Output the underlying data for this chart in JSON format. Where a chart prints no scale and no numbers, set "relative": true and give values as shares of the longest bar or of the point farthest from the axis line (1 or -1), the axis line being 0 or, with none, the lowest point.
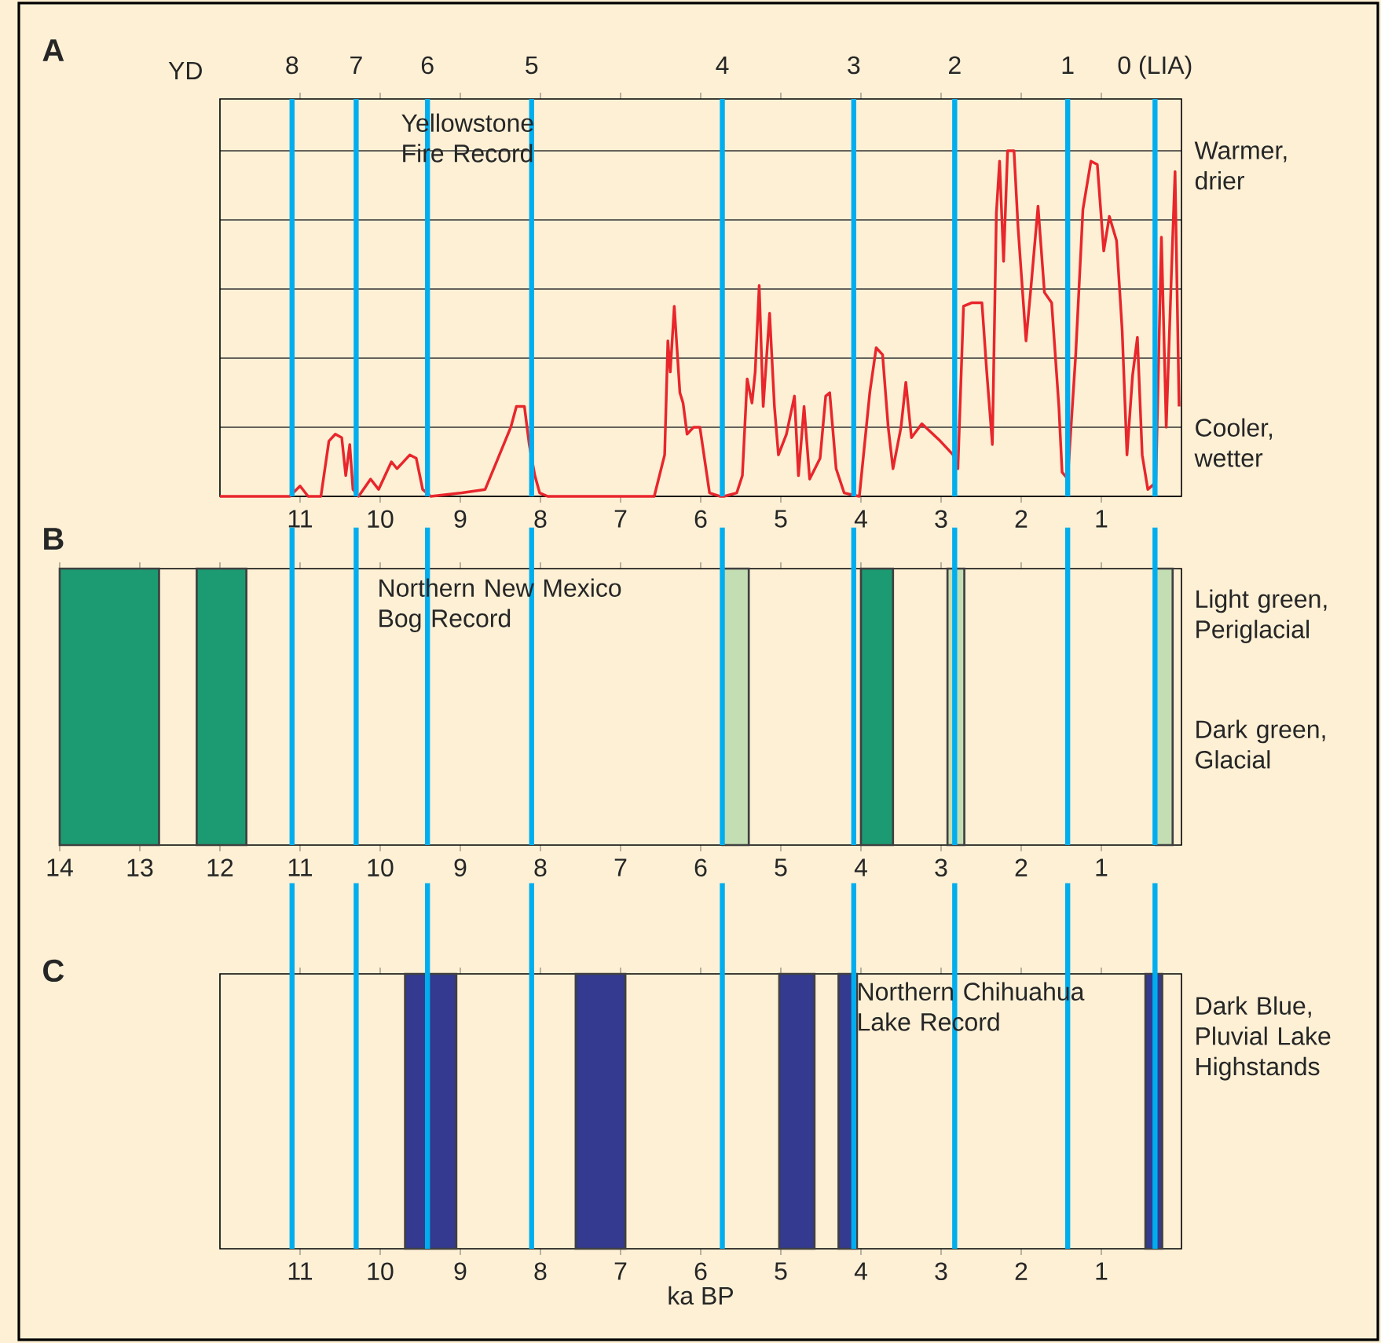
{
  "chart_data": [
    {
      "type": "line",
      "title": "A",
      "relative": true,
      "grid": "y",
      "xlim": [
        12,
        0
      ],
      "xticks": [
        11,
        10,
        9,
        8,
        7,
        6,
        5,
        4,
        3,
        2,
        1
      ],
      "series": [
        {
          "color": "#e8262c",
          "x": [
            12.0,
            11.13,
            11.0,
            10.9,
            10.74,
            10.64,
            10.56,
            10.48,
            10.43,
            10.38,
            10.34,
            10.27,
            10.12,
            10.02,
            9.86,
            9.79,
            9.63,
            9.55,
            9.47,
            9.37,
            8.98,
            8.69,
            8.53,
            8.37,
            8.3,
            8.2,
            8.14,
            8.07,
            8.01,
            7.91,
            6.58,
            6.45,
            6.41,
            6.38,
            6.33,
            6.26,
            6.22,
            6.17,
            6.09,
            6.01,
            5.89,
            5.76,
            5.71,
            5.55,
            5.48,
            5.42,
            5.36,
            5.32,
            5.27,
            5.22,
            5.14,
            5.08,
            5.03,
            4.93,
            4.83,
            4.78,
            4.71,
            4.64,
            4.51,
            4.44,
            4.39,
            4.31,
            4.21,
            4.02,
            3.89,
            3.81,
            3.73,
            3.66,
            3.6,
            3.5,
            3.44,
            3.37,
            3.24,
            3.01,
            2.85,
            2.79,
            2.72,
            2.62,
            2.49,
            2.43,
            2.36,
            2.31,
            2.27,
            2.22,
            2.17,
            2.09,
            2.04,
            1.94,
            1.88,
            1.79,
            1.71,
            1.62,
            1.53,
            1.49,
            1.42,
            1.32,
            1.23,
            1.13,
            1.05,
            0.97,
            0.9,
            0.81,
            0.74,
            0.68,
            0.61,
            0.55,
            0.49,
            0.42,
            0.32,
            0.25,
            0.19,
            0.12,
            0.08,
            0.03
          ],
          "values": [
            0,
            0,
            0.03,
            0,
            0,
            0.16,
            0.18,
            0.17,
            0.06,
            0.15,
            0.02,
            0,
            0.05,
            0.02,
            0.1,
            0.08,
            0.12,
            0.11,
            0.02,
            0,
            0.01,
            0.02,
            0.11,
            0.2,
            0.26,
            0.26,
            0.15,
            0.06,
            0.01,
            0,
            0,
            0.12,
            0.45,
            0.36,
            0.55,
            0.3,
            0.27,
            0.18,
            0.2,
            0.2,
            0.01,
            0,
            0,
            0.01,
            0.06,
            0.34,
            0.27,
            0.36,
            0.61,
            0.26,
            0.53,
            0.26,
            0.12,
            0.18,
            0.29,
            0.06,
            0.26,
            0.05,
            0.11,
            0.29,
            0.3,
            0.08,
            0.01,
            0,
            0.3,
            0.43,
            0.41,
            0.2,
            0.08,
            0.2,
            0.33,
            0.17,
            0.21,
            0.16,
            0.12,
            0.08,
            0.55,
            0.56,
            0.56,
            0.36,
            0.15,
            0.82,
            0.97,
            0.68,
            1.0,
            1.0,
            0.78,
            0.45,
            0.6,
            0.84,
            0.59,
            0.56,
            0.26,
            0.07,
            0.05,
            0.41,
            0.83,
            0.97,
            0.96,
            0.71,
            0.81,
            0.74,
            0.48,
            0.12,
            0.35,
            0.46,
            0.12,
            0.02,
            0.04,
            0.75,
            0.2,
            0.68,
            0.94,
            0.26
          ]
        }
      ],
      "ref_lines": [
        {
          "axis": "x",
          "value": 11.1,
          "color": "#00aeef"
        },
        {
          "axis": "x",
          "value": 10.3,
          "color": "#00aeef"
        },
        {
          "axis": "x",
          "value": 9.41,
          "color": "#00aeef"
        },
        {
          "axis": "x",
          "value": 8.11,
          "color": "#00aeef"
        },
        {
          "axis": "x",
          "value": 5.73,
          "color": "#00aeef"
        },
        {
          "axis": "x",
          "value": 4.09,
          "color": "#00aeef"
        },
        {
          "axis": "x",
          "value": 2.83,
          "color": "#00aeef"
        },
        {
          "axis": "x",
          "value": 1.42,
          "color": "#00aeef"
        },
        {
          "axis": "x",
          "value": 0.33,
          "color": "#00aeef"
        }
      ],
      "annotations": [
        "YD",
        "Yellowstone Fire Record",
        "Warmer, drier",
        "Cooler, wetter",
        "8",
        "7",
        "6",
        "5",
        "4",
        "3",
        "2",
        "1",
        "0 (LIA)"
      ]
    },
    {
      "type": "bar",
      "title": "B",
      "orientation": "horizontal",
      "categories": [
        null
      ],
      "xlim": [
        14,
        0
      ],
      "xticks": [
        14,
        13,
        12,
        11,
        10,
        9,
        8,
        7,
        6,
        5,
        4,
        3,
        2,
        1
      ],
      "series": [
        {
          "color": "#1c9b73",
          "values": [
            1.24
          ],
          "base": [
            12.76
          ]
        },
        {
          "color": "#1c9b73",
          "values": [
            0.62
          ],
          "base": [
            11.67
          ]
        },
        {
          "color": "#c4deb4",
          "values": [
            0.33
          ],
          "base": [
            5.4
          ]
        },
        {
          "color": "#1c9b73",
          "values": [
            0.4
          ],
          "base": [
            3.6
          ]
        },
        {
          "color": "#c4deb4",
          "values": [
            0.21
          ],
          "base": [
            2.71
          ]
        },
        {
          "color": "#c4deb4",
          "values": [
            0.21
          ],
          "base": [
            0.11
          ]
        }
      ],
      "ref_lines": [
        {
          "axis": "x",
          "value": 11.1,
          "color": "#00aeef"
        },
        {
          "axis": "x",
          "value": 10.3,
          "color": "#00aeef"
        },
        {
          "axis": "x",
          "value": 9.41,
          "color": "#00aeef"
        },
        {
          "axis": "x",
          "value": 8.11,
          "color": "#00aeef"
        },
        {
          "axis": "x",
          "value": 5.73,
          "color": "#00aeef"
        },
        {
          "axis": "x",
          "value": 4.09,
          "color": "#00aeef"
        },
        {
          "axis": "x",
          "value": 2.83,
          "color": "#00aeef"
        },
        {
          "axis": "x",
          "value": 1.42,
          "color": "#00aeef"
        },
        {
          "axis": "x",
          "value": 0.33,
          "color": "#00aeef"
        }
      ],
      "annotations": [
        "Northern New Mexico Bog Record",
        "Light green, Periglacial",
        "Dark green, Glacial"
      ]
    },
    {
      "type": "bar",
      "title": "C",
      "orientation": "horizontal",
      "categories": [
        null
      ],
      "xlim": [
        12,
        0
      ],
      "xticks": [
        11,
        10,
        9,
        8,
        7,
        6,
        5,
        4,
        3,
        2,
        1
      ],
      "xlabel": "ka BP",
      "series": [
        {
          "color": "#333a8f",
          "values": [
            0.64
          ],
          "base": [
            9.05
          ]
        },
        {
          "color": "#333a8f",
          "values": [
            0.62
          ],
          "base": [
            6.94
          ]
        },
        {
          "color": "#333a8f",
          "values": [
            0.44
          ],
          "base": [
            4.58
          ]
        },
        {
          "color": "#333a8f",
          "values": [
            0.23
          ],
          "base": [
            4.05
          ]
        },
        {
          "color": "#333a8f",
          "values": [
            0.21
          ],
          "base": [
            0.24
          ]
        }
      ],
      "ref_lines": [
        {
          "axis": "x",
          "value": 11.1,
          "color": "#00aeef"
        },
        {
          "axis": "x",
          "value": 10.3,
          "color": "#00aeef"
        },
        {
          "axis": "x",
          "value": 9.41,
          "color": "#00aeef"
        },
        {
          "axis": "x",
          "value": 8.11,
          "color": "#00aeef"
        },
        {
          "axis": "x",
          "value": 5.73,
          "color": "#00aeef"
        },
        {
          "axis": "x",
          "value": 4.09,
          "color": "#00aeef"
        },
        {
          "axis": "x",
          "value": 2.83,
          "color": "#00aeef"
        },
        {
          "axis": "x",
          "value": 1.42,
          "color": "#00aeef"
        },
        {
          "axis": "x",
          "value": 0.33,
          "color": "#00aeef"
        }
      ],
      "annotations": [
        "Northern Chihuahua Lake Record",
        "Dark Blue, Pluvial Lake Highstands"
      ]
    }
  ]
}
